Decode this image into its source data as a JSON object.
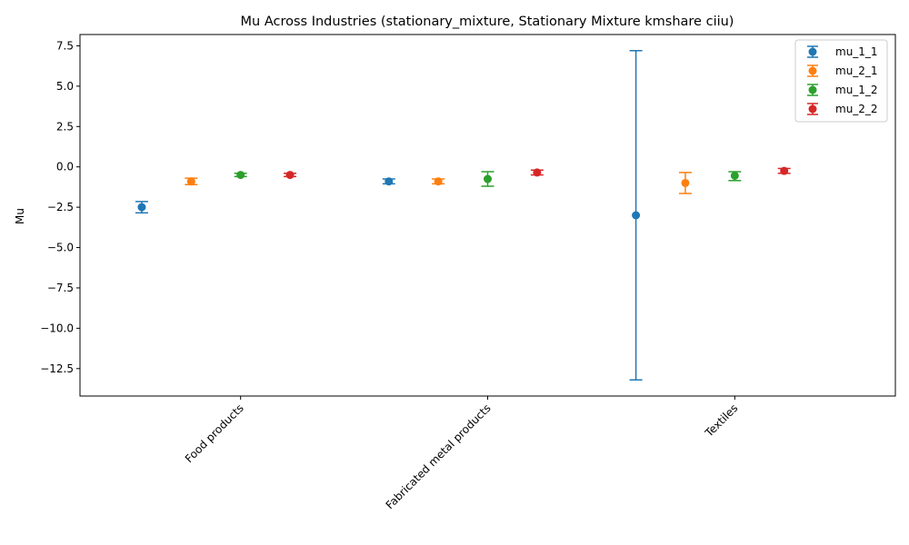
{
  "chart_data": {
    "type": "scatter",
    "title": "Mu Across Industries (stationary_mixture, Stationary Mixture kmshare ciiu)",
    "xlabel": "",
    "ylabel": "Mu",
    "ylim": [
      -14.2,
      8.2
    ],
    "yticks": [
      7.5,
      5.0,
      2.5,
      0.0,
      -2.5,
      -5.0,
      -7.5,
      -10.0,
      -12.5
    ],
    "ytick_labels": [
      "7.5",
      "5.0",
      "2.5",
      "0.0",
      "−2.5",
      "−5.0",
      "−7.5",
      "−10.0",
      "−12.5"
    ],
    "categories": [
      "Food products",
      "Fabricated metal products",
      "Textiles"
    ],
    "legend_position": "top-right",
    "grid": false,
    "series": [
      {
        "name": "mu_1_1",
        "color": "#1f77b4",
        "values": [
          -2.5,
          -0.9,
          -3.0
        ],
        "lower": [
          -2.85,
          -1.05,
          -13.2
        ],
        "upper": [
          -2.15,
          -0.75,
          7.2
        ]
      },
      {
        "name": "mu_2_1",
        "color": "#ff7f0e",
        "values": [
          -0.9,
          -0.9,
          -1.0
        ],
        "lower": [
          -1.1,
          -1.05,
          -1.65
        ],
        "upper": [
          -0.7,
          -0.75,
          -0.35
        ]
      },
      {
        "name": "mu_1_2",
        "color": "#2ca02c",
        "values": [
          -0.5,
          -0.75,
          -0.55
        ],
        "lower": [
          -0.6,
          -1.2,
          -0.85
        ],
        "upper": [
          -0.4,
          -0.3,
          -0.3
        ]
      },
      {
        "name": "mu_2_2",
        "color": "#d62728",
        "values": [
          -0.5,
          -0.35,
          -0.25
        ],
        "lower": [
          -0.6,
          -0.5,
          -0.4
        ],
        "upper": [
          -0.4,
          -0.2,
          -0.1
        ]
      }
    ]
  }
}
